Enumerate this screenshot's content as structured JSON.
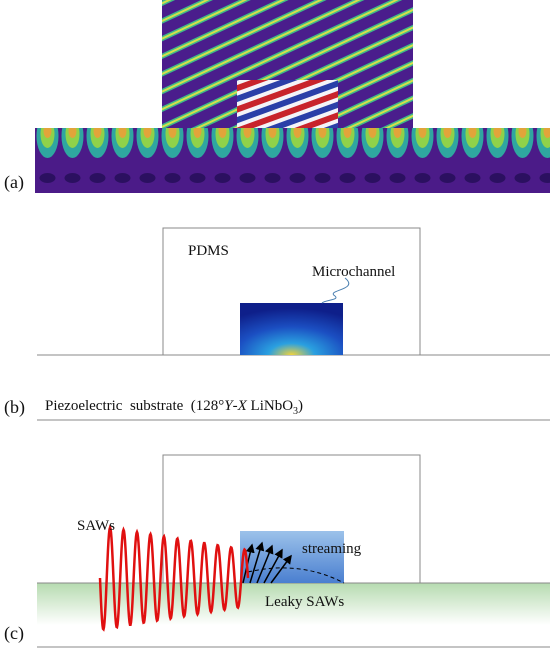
{
  "panels": [
    {
      "label": "(a)"
    },
    {
      "label": "(b)",
      "pdms": "PDMS",
      "channel": "Microchannel",
      "substrate": [
        "Piezoelectric  substrate  (128°",
        "Y",
        "-",
        "X",
        " LiNbO",
        "3",
        ")"
      ]
    },
    {
      "label": "(c)",
      "saws": "SAWs",
      "streaming": "streaming",
      "leaky": "Leaky SAWs"
    }
  ]
}
